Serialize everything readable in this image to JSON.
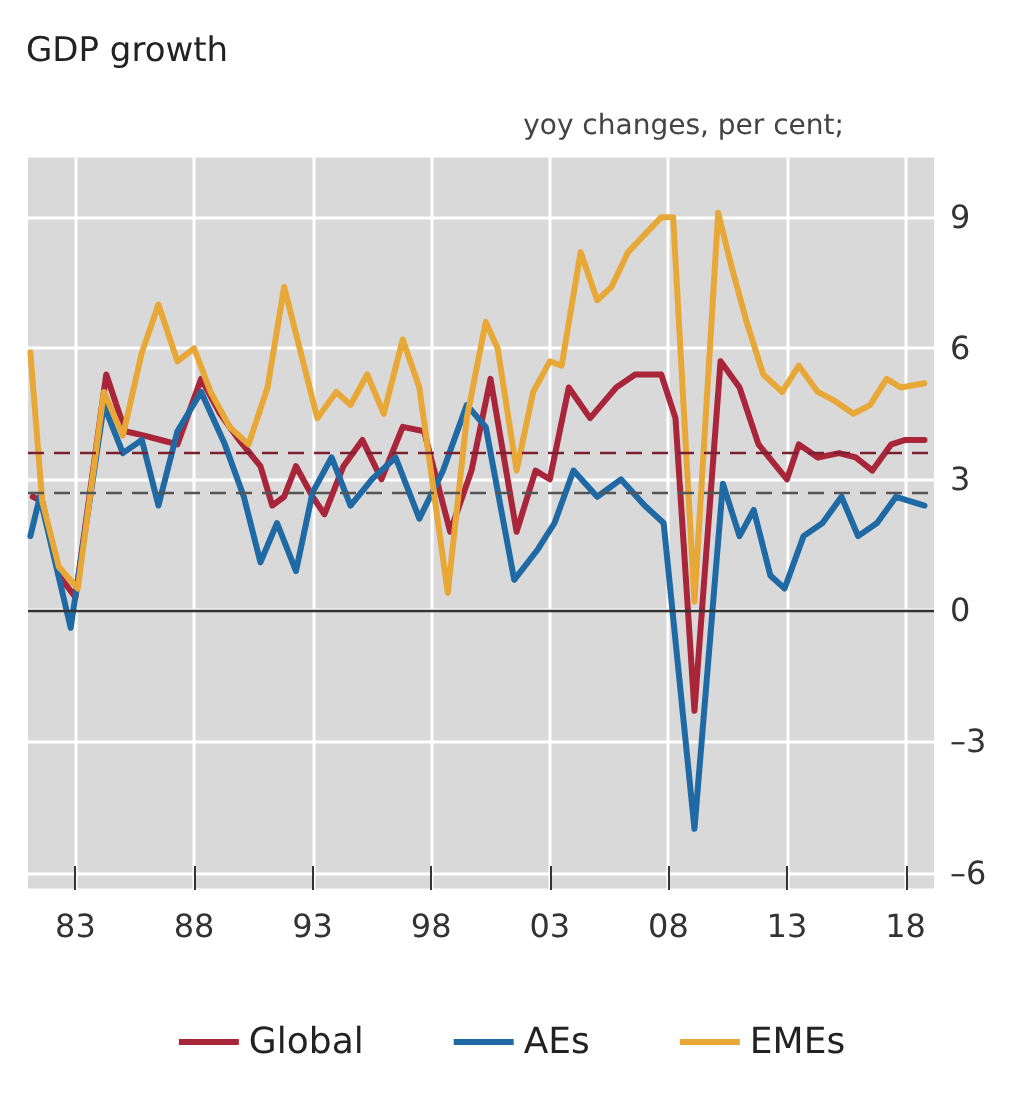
{
  "chart_data": {
    "type": "line",
    "title": "GDP growth",
    "ylabel": "yoy changes, per cent;",
    "xlim": [
      1981,
      2019.2
    ],
    "xticks": [
      {
        "value": 1983,
        "label": "83"
      },
      {
        "value": 1988,
        "label": "88"
      },
      {
        "value": 1993,
        "label": "93"
      },
      {
        "value": 1998,
        "label": "98"
      },
      {
        "value": 2003,
        "label": "03"
      },
      {
        "value": 2008,
        "label": "08"
      },
      {
        "value": 2013,
        "label": "13"
      },
      {
        "value": 2018,
        "label": "18"
      }
    ],
    "ylim": [
      -6.4,
      10.4
    ],
    "yticks": [
      {
        "value": -6,
        "label": "–6"
      },
      {
        "value": -3,
        "label": "–3"
      },
      0,
      3,
      6,
      9
    ],
    "grid": true,
    "legend": "bottom",
    "marker": "none",
    "line_style": "solid",
    "ref_lines": [
      {
        "axis": "y",
        "value": 0,
        "color": "#333333",
        "line_style": "solid"
      },
      {
        "axis": "y",
        "value": 3.6,
        "color": "#7a2030",
        "line_style": "dashed"
      },
      {
        "axis": "y",
        "value": 2.7,
        "color": "#555555",
        "line_style": "dashed"
      }
    ],
    "series": [
      {
        "name": "Global",
        "color": "#a8253a",
        "x": [
          1981.2,
          1981.6,
          1982.3,
          1983.0,
          1984.3,
          1985.1,
          1985.9,
          1986.6,
          1987.3,
          1988.3,
          1989.1,
          1989.9,
          1990.8,
          1991.3,
          1991.8,
          1992.3,
          1993.0,
          1993.5,
          1994.3,
          1995.1,
          1995.9,
          1996.8,
          1997.7,
          1998.8,
          1999.7,
          2000.5,
          2001.6,
          2002.4,
          2003.0,
          2003.8,
          2004.7,
          2005.8,
          2006.6,
          2007.7,
          2008.3,
          2009.1,
          2010.2,
          2011.0,
          2011.8,
          2012.7,
          2013.0,
          2013.5,
          2014.3,
          2015.2,
          2015.9,
          2016.6,
          2017.4,
          2018.0,
          2018.8
        ],
        "values": [
          2.6,
          2.5,
          0.8,
          0.3,
          5.4,
          4.1,
          4.0,
          3.9,
          3.8,
          5.3,
          4.5,
          3.9,
          3.3,
          2.4,
          2.6,
          3.3,
          2.6,
          2.2,
          3.3,
          3.9,
          3.0,
          4.2,
          4.1,
          1.8,
          3.2,
          5.3,
          1.8,
          3.2,
          3.0,
          5.1,
          4.4,
          5.1,
          5.4,
          5.4,
          4.4,
          -2.3,
          5.7,
          5.1,
          3.8,
          3.2,
          3.0,
          3.8,
          3.5,
          3.6,
          3.5,
          3.2,
          3.8,
          3.9,
          3.9
        ]
      },
      {
        "name": "AEs",
        "color": "#1f6aa5",
        "x": [
          1981.1,
          1981.5,
          1982.8,
          1984.2,
          1985.0,
          1985.8,
          1986.5,
          1987.3,
          1988.3,
          1989.3,
          1990.1,
          1990.8,
          1991.5,
          1992.3,
          1993.0,
          1993.8,
          1994.6,
          1995.5,
          1996.5,
          1997.5,
          1998.5,
          1999.5,
          2000.3,
          2001.5,
          2002.5,
          2003.2,
          2004.0,
          2005.0,
          2006.0,
          2007.0,
          2007.8,
          2009.1,
          2010.3,
          2011.0,
          2011.6,
          2012.3,
          2012.9,
          2013.7,
          2014.5,
          2015.3,
          2016.0,
          2016.8,
          2017.6,
          2018.8
        ],
        "values": [
          1.7,
          2.6,
          -0.4,
          4.7,
          3.6,
          3.9,
          2.4,
          4.1,
          5.0,
          3.8,
          2.6,
          1.1,
          2.0,
          0.9,
          2.7,
          3.5,
          2.4,
          3.0,
          3.5,
          2.1,
          3.2,
          4.7,
          4.2,
          0.7,
          1.4,
          2.0,
          3.2,
          2.6,
          3.0,
          2.4,
          2.0,
          -5.0,
          2.9,
          1.7,
          2.3,
          0.8,
          0.5,
          1.7,
          2.0,
          2.6,
          1.7,
          2.0,
          2.6,
          2.4
        ]
      },
      {
        "name": "EMEs",
        "color": "#e8a838",
        "x": [
          1981.1,
          1981.6,
          1982.3,
          1983.1,
          1984.2,
          1985.0,
          1985.8,
          1986.5,
          1987.3,
          1988.0,
          1988.7,
          1989.5,
          1990.3,
          1991.1,
          1991.8,
          1992.5,
          1993.2,
          1994.0,
          1994.6,
          1995.3,
          1996.0,
          1996.8,
          1997.5,
          1998.7,
          1999.5,
          2000.3,
          2000.8,
          2001.6,
          2002.3,
          2003.0,
          2003.5,
          2004.3,
          2005.0,
          2005.6,
          2006.3,
          2007.0,
          2007.7,
          2008.2,
          2009.1,
          2010.1,
          2010.6,
          2011.3,
          2012.0,
          2012.8,
          2013.5,
          2014.3,
          2015.0,
          2015.8,
          2016.5,
          2017.2,
          2017.8,
          2018.8
        ],
        "values": [
          5.9,
          2.5,
          1.0,
          0.5,
          5.0,
          4.0,
          5.9,
          7.0,
          5.7,
          6.0,
          5.0,
          4.2,
          3.8,
          5.1,
          7.4,
          5.9,
          4.4,
          5.0,
          4.7,
          5.4,
          4.5,
          6.2,
          5.1,
          0.4,
          4.4,
          6.6,
          6.0,
          3.2,
          5.0,
          5.7,
          5.6,
          8.2,
          7.1,
          7.4,
          8.2,
          8.6,
          9.0,
          9.0,
          0.2,
          9.1,
          8.0,
          6.6,
          5.4,
          5.0,
          5.6,
          5.0,
          4.8,
          4.5,
          4.7,
          5.3,
          5.1,
          5.2
        ]
      }
    ]
  }
}
